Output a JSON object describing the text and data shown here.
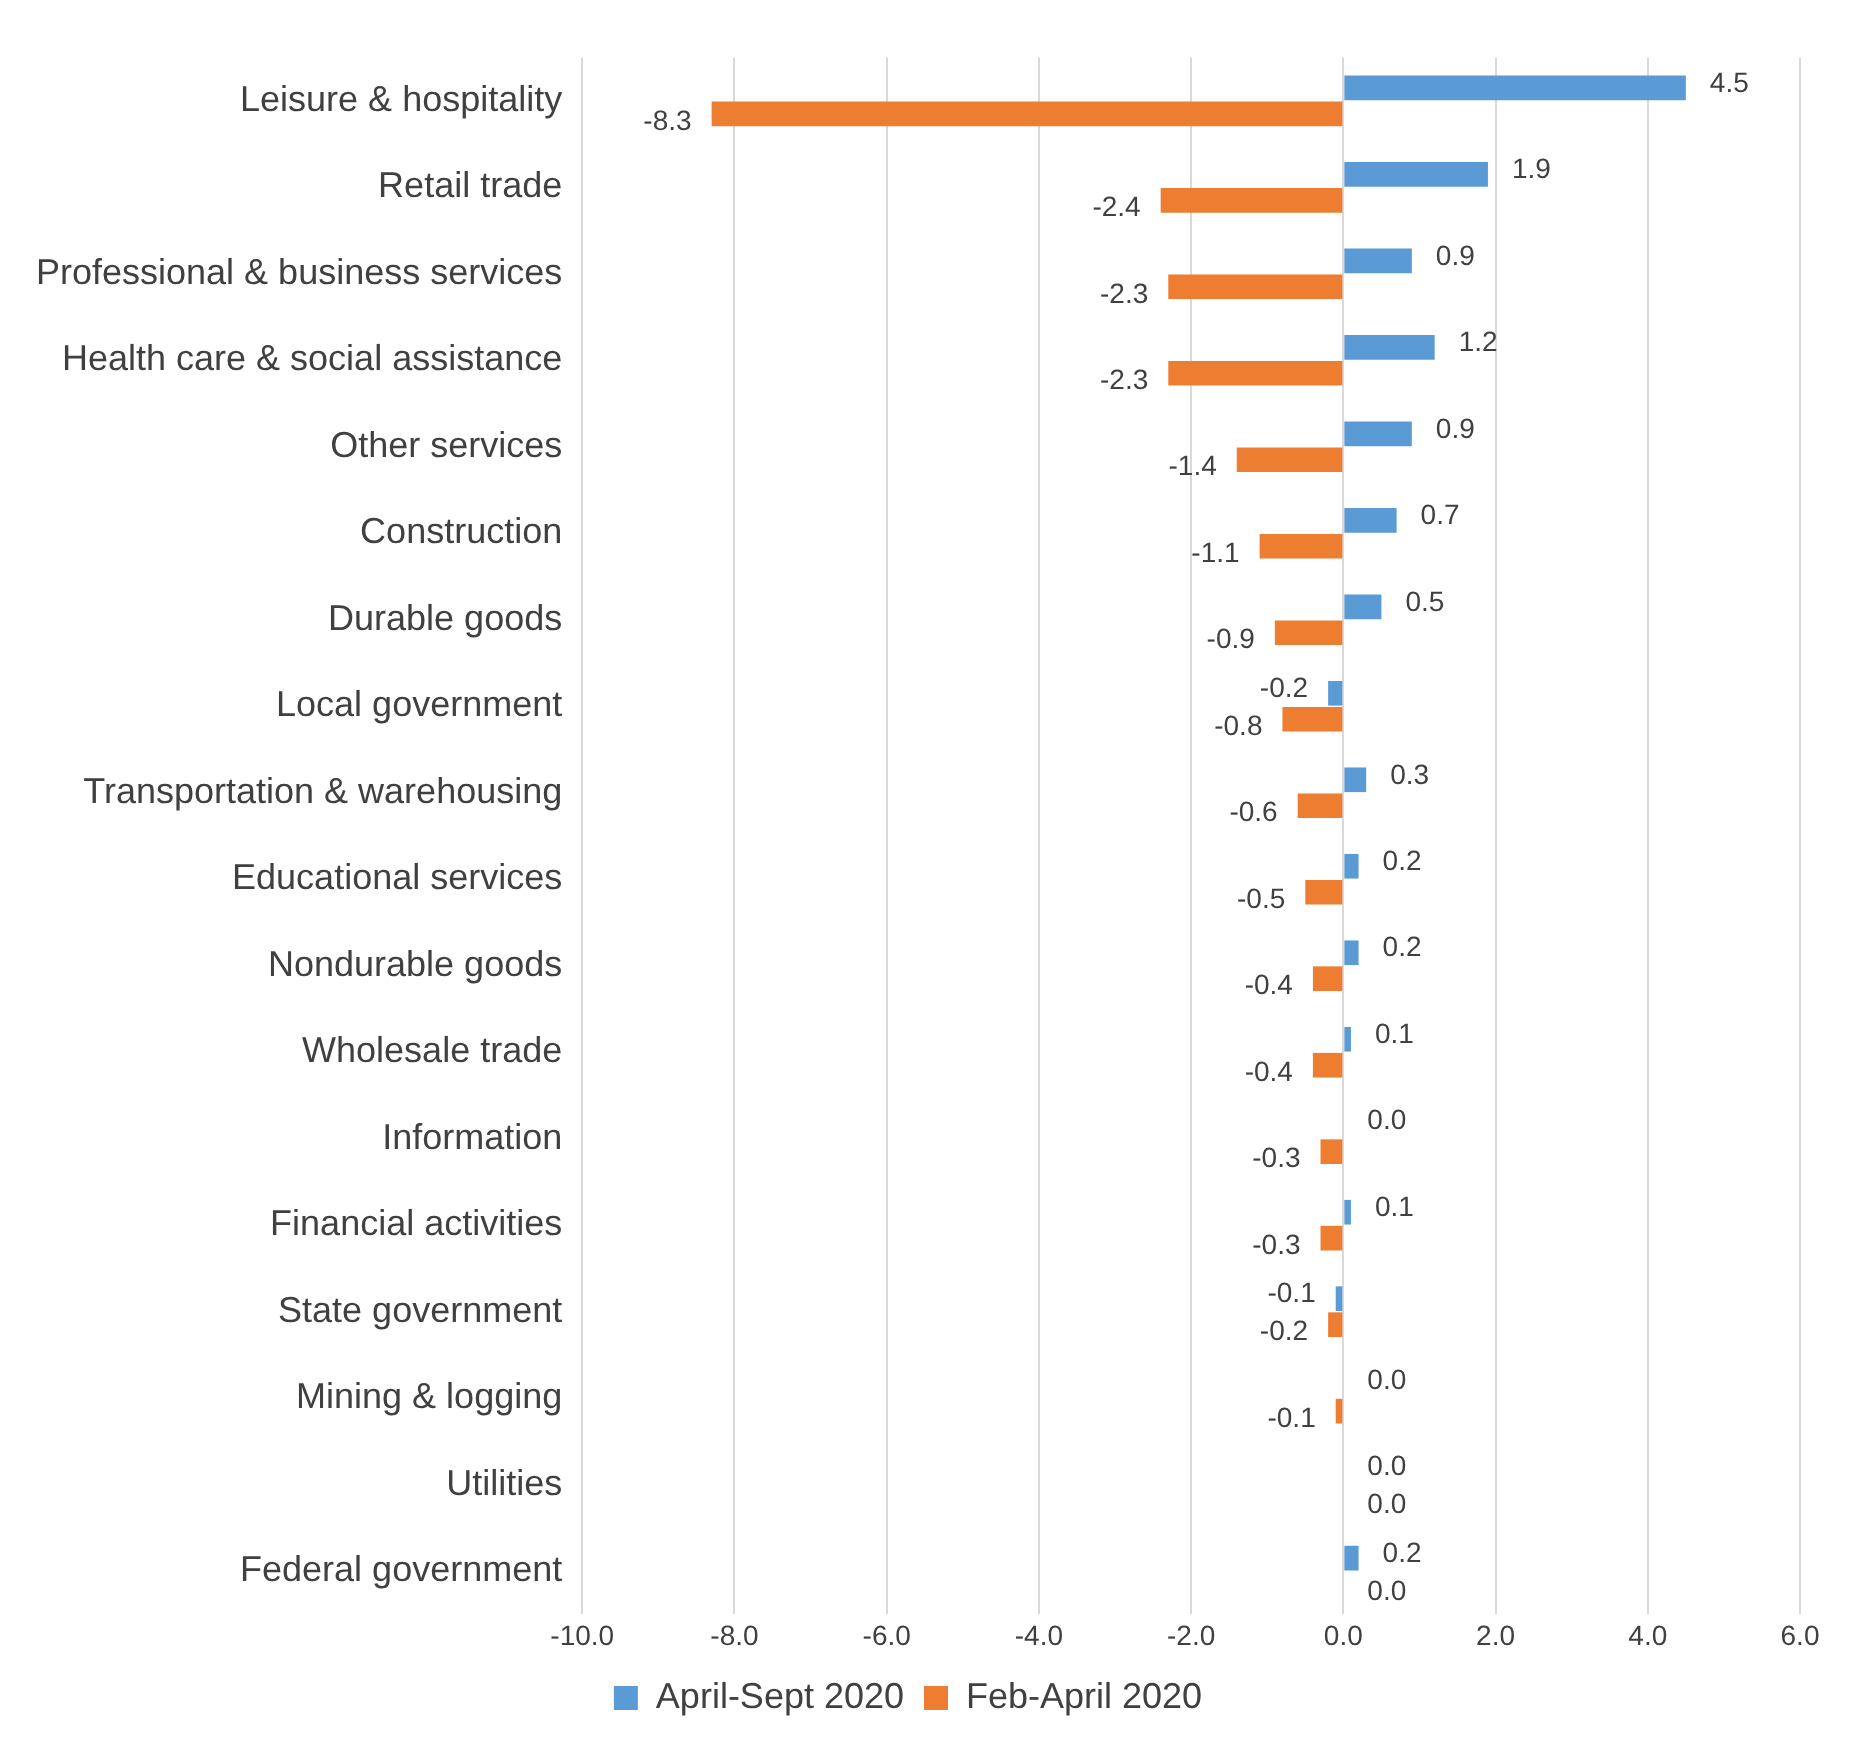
{
  "chart_data": {
    "type": "bar",
    "orientation": "horizontal",
    "categories": [
      "Leisure & hospitality",
      "Retail trade",
      "Professional & business services",
      "Health care & social assistance",
      "Other services",
      "Construction",
      "Durable goods",
      "Local government",
      "Transportation & warehousing",
      "Educational services",
      "Nondurable goods",
      "Wholesale trade",
      "Information",
      "Financial activities",
      "State government",
      "Mining & logging",
      "Utilities",
      "Federal government"
    ],
    "series": [
      {
        "name": "April-Sept 2020",
        "color": "#5b9bd5",
        "values": [
          4.5,
          1.9,
          0.9,
          1.2,
          0.9,
          0.7,
          0.5,
          -0.2,
          0.3,
          0.2,
          0.2,
          0.1,
          0.0,
          0.1,
          -0.1,
          0.0,
          0.0,
          0.2
        ],
        "value_labels": [
          "4.5",
          "1.9",
          "0.9",
          "1.2",
          "0.9",
          "0.7",
          "0.5",
          "-0.2",
          "0.3",
          "0.2",
          "0.2",
          "0.1",
          "0.0",
          "0.1",
          "-0.1",
          "0.0",
          "0.0",
          "0.2"
        ]
      },
      {
        "name": "Feb-April 2020",
        "color": "#ed7d31",
        "values": [
          -8.3,
          -2.4,
          -2.3,
          -2.3,
          -1.4,
          -1.1,
          -0.9,
          -0.8,
          -0.6,
          -0.5,
          -0.4,
          -0.4,
          -0.3,
          -0.3,
          -0.2,
          -0.1,
          0.0,
          0.0
        ],
        "value_labels": [
          "-8.3",
          "-2.4",
          "-2.3",
          "-2.3",
          "-1.4",
          "-1.1",
          "-0.9",
          "-0.8",
          "-0.6",
          "-0.5",
          "-0.4",
          "-0.4",
          "-0.3",
          "-0.3",
          "-0.2",
          "-0.1",
          "0.0",
          "0.0"
        ]
      }
    ],
    "xlim": [
      -10,
      6
    ],
    "xticks": [
      {
        "value": -10,
        "label": "-10.0"
      },
      {
        "value": -8,
        "label": "-8.0"
      },
      {
        "value": -6,
        "label": "-6.0"
      },
      {
        "value": -4,
        "label": "-4.0"
      },
      {
        "value": -2,
        "label": "-2.0"
      },
      {
        "value": 0,
        "label": "0.0"
      },
      {
        "value": 2,
        "label": "2.0"
      },
      {
        "value": 4,
        "label": "4.0"
      },
      {
        "value": 6,
        "label": "6.0"
      }
    ],
    "grid": "x",
    "legend": "bottom"
  }
}
